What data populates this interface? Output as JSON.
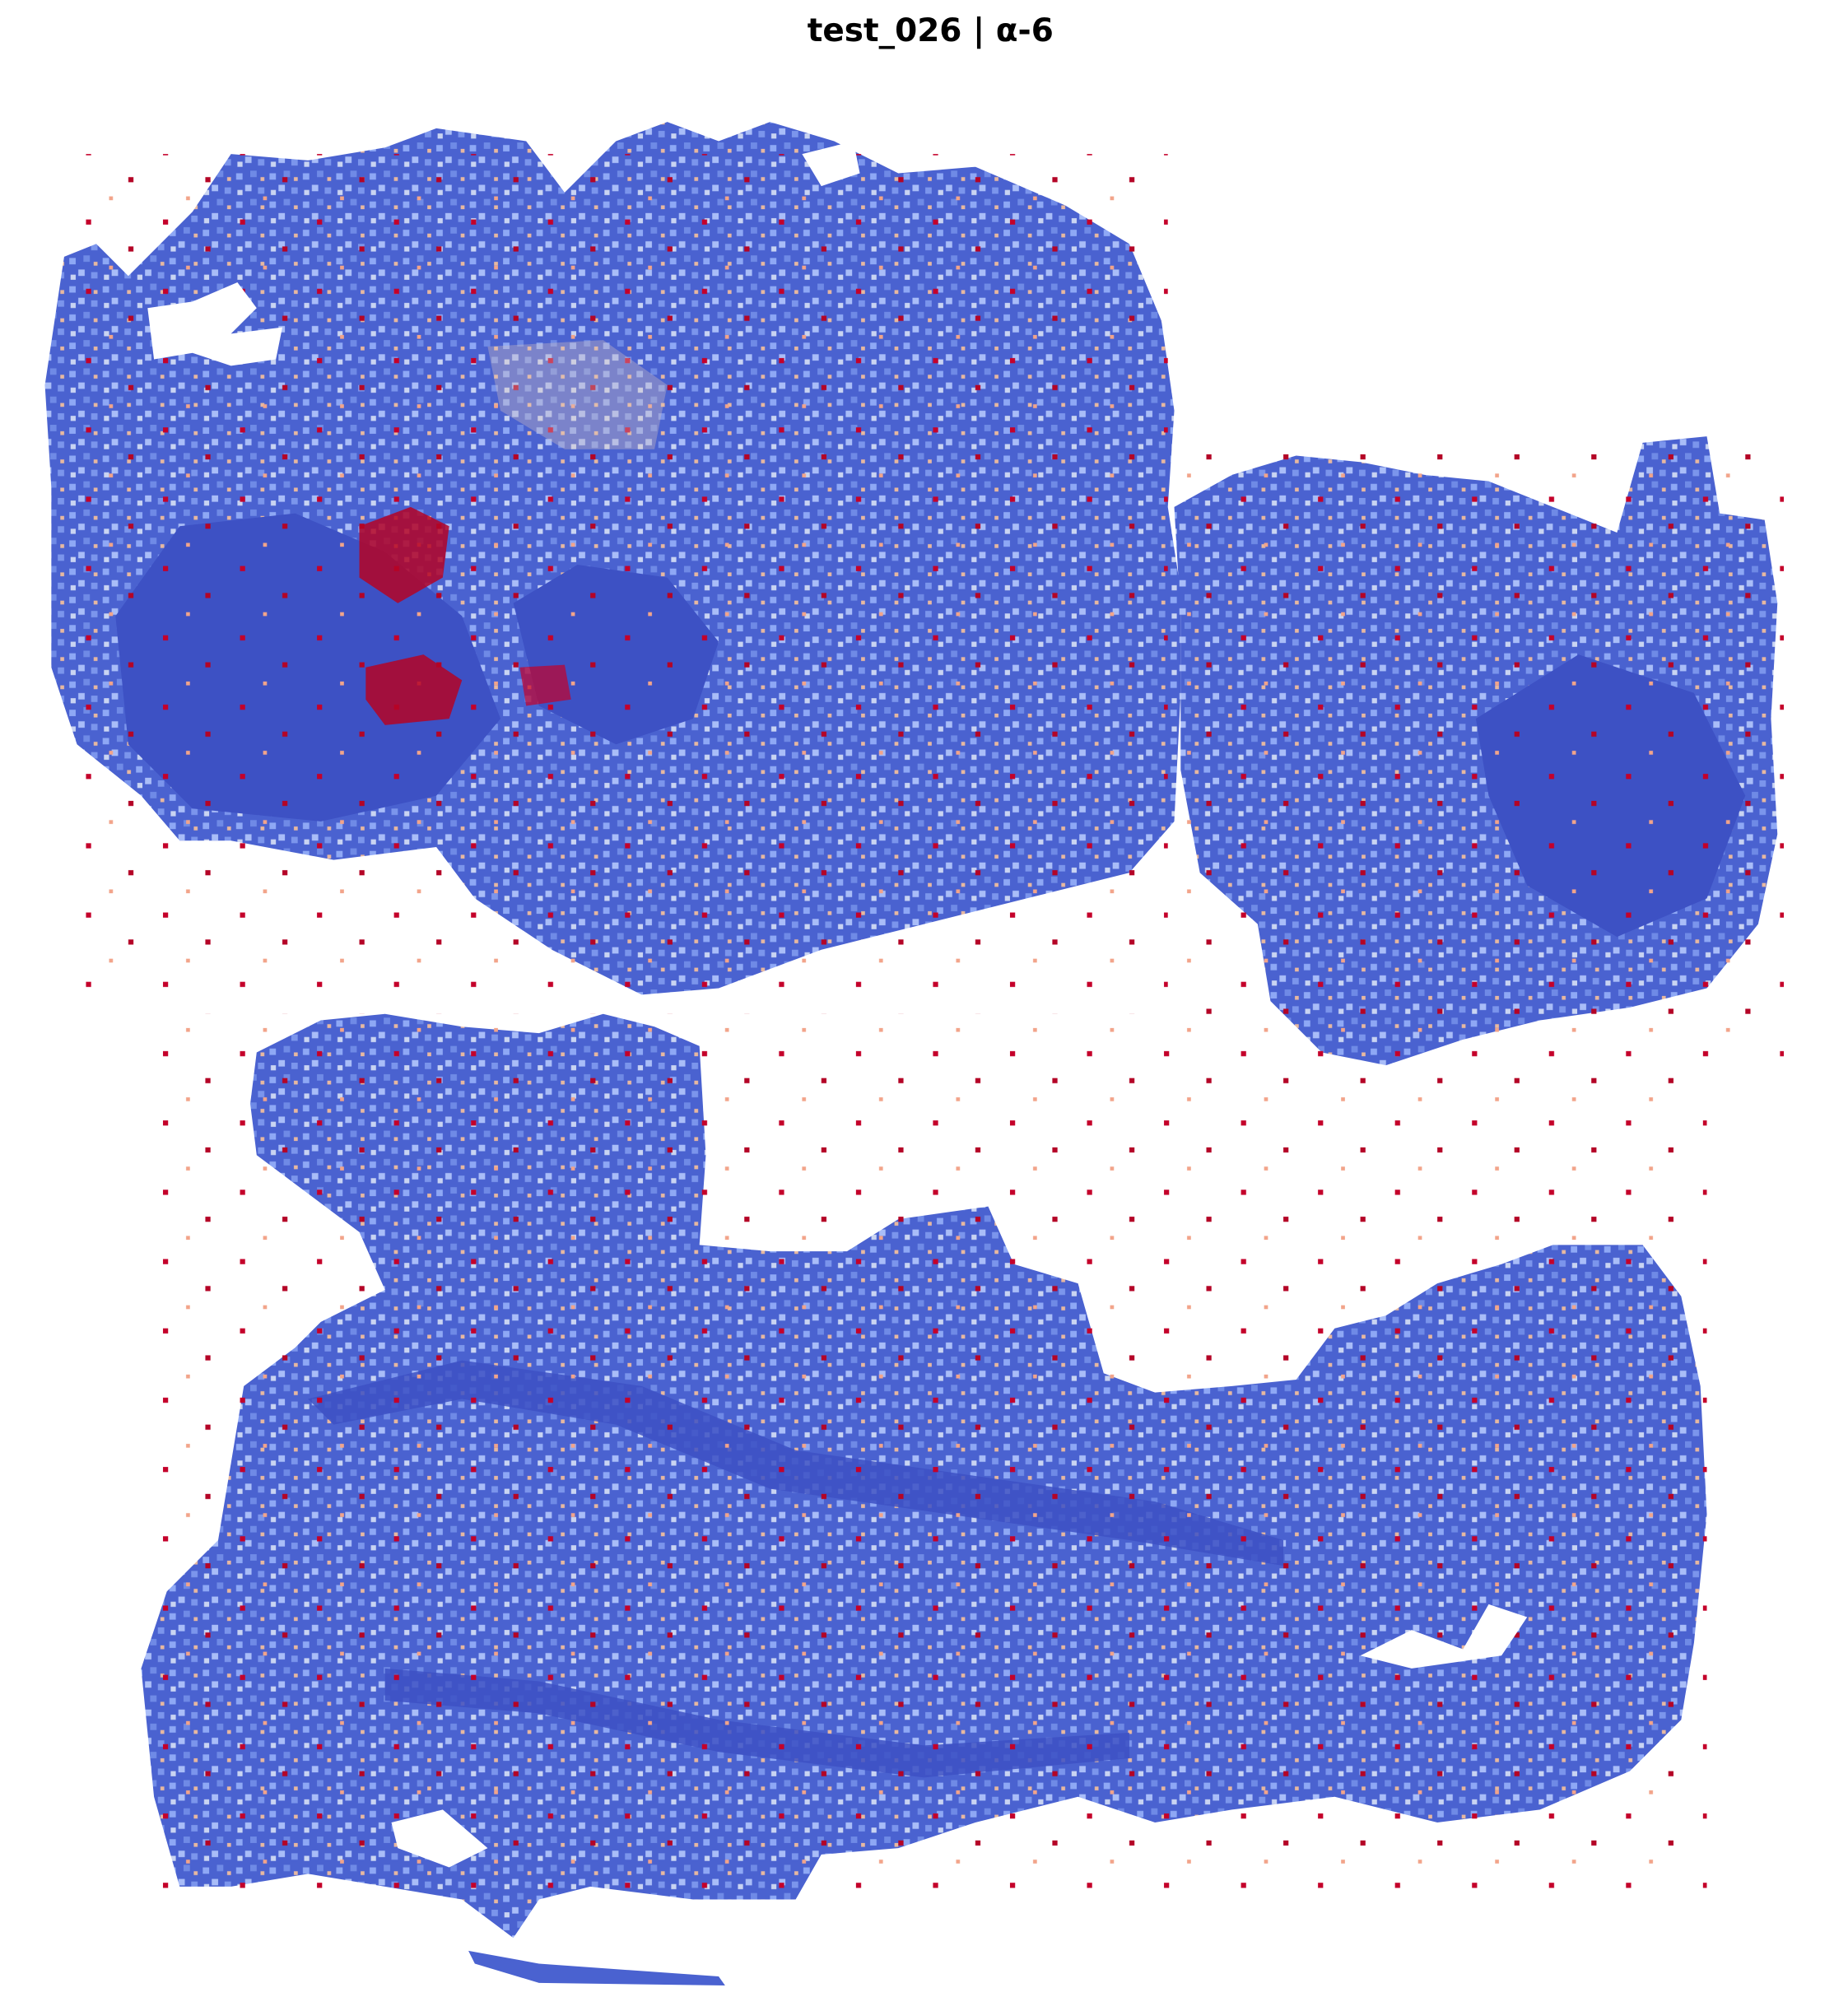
{
  "title": "test_026 | α-6"
}
